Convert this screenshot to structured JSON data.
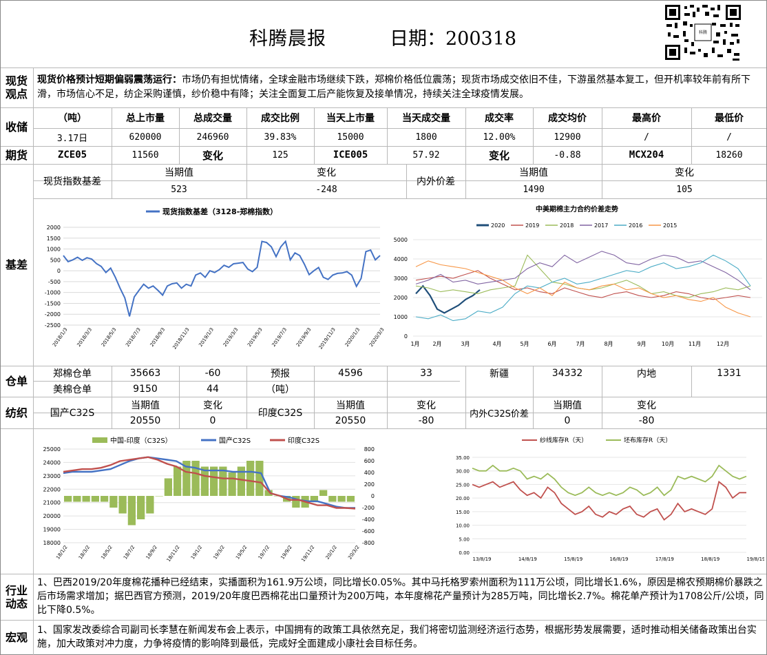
{
  "header": {
    "title": "科腾晨报",
    "date_label": "日期：200318"
  },
  "views": {
    "label": "现货观点",
    "headline": "现货价格预计短期偏弱震荡运行：",
    "body": "市场仍有担忧情绪，全球金融市场继续下跌，郑棉价格低位震荡；现货市场成交依旧不佳，下游虽然基本复工，但开机率较年前有所下滑，市场信心不足，纺企采购谨慎，纱价稳中有降；关注全面复工后产能恢复及接单情况，持续关注全球疫情发展。"
  },
  "storage": {
    "label": "收储",
    "headers": [
      "（吨）",
      "总上市量",
      "总成交量",
      "成交比例",
      "当天上市量",
      "当天成交量",
      "成交率",
      "成交均价",
      "最高价",
      "最低价"
    ],
    "values": [
      "3.17日",
      "620000",
      "246960",
      "39.83%",
      "15000",
      "1800",
      "12.00%",
      "12900",
      "/",
      "/"
    ]
  },
  "futures": {
    "label": "期货",
    "cells": [
      "ZCE05",
      "11560",
      "变化",
      "125",
      "ICE005",
      "57.92",
      "变化",
      "-0.88",
      "MCX204",
      "18260"
    ]
  },
  "basis": {
    "label": "基差",
    "spot_label": "现货指数基差",
    "cur_label": "当期值",
    "chg_label": "变化",
    "spot_cur": "523",
    "spot_chg": "-248",
    "inout_label": "内外价差",
    "inout_cur": "1490",
    "inout_chg": "105"
  },
  "chart1": {
    "type": "line",
    "title": "现货指数基差（3128-郑棉指数）",
    "color": "#4472c4",
    "yticks": [
      "2000",
      "1500",
      "1000",
      "500",
      "0",
      "-500",
      "-1000",
      "-1500",
      "-2000",
      "-2500"
    ],
    "ylim": [
      -2500,
      2000
    ],
    "xticks": [
      "2018/1/3",
      "2018/3/3",
      "2018/5/3",
      "2018/7/3",
      "2018/9/3",
      "2018/11/3",
      "2019/1/3",
      "2019/3/3",
      "2019/5/3",
      "2019/7/3",
      "2019/9/3",
      "2019/11/3",
      "2020/1/3",
      "2020/3/3"
    ],
    "values": [
      700,
      420,
      500,
      620,
      480,
      600,
      540,
      330,
      200,
      -80,
      120,
      -300,
      -800,
      -1250,
      -2100,
      -1200,
      -900,
      -620,
      -800,
      -700,
      -900,
      -1120,
      -700,
      -600,
      -560,
      -800,
      -620,
      -700,
      -200,
      -100,
      -300,
      0,
      -80,
      50,
      250,
      160,
      320,
      350,
      380,
      80,
      -40,
      160,
      1350,
      1300,
      1100,
      650,
      1100,
      1350,
      500,
      820,
      700,
      300,
      -180,
      0,
      150,
      -300,
      -400,
      -200,
      -120,
      -100,
      -40,
      -200,
      -720,
      -350,
      880,
      950,
      500,
      700
    ]
  },
  "chart2": {
    "type": "line",
    "title": "中美期棉主力合约价差走势",
    "yticks": [
      "5000",
      "4000",
      "3000",
      "2000",
      "1000",
      "0"
    ],
    "ylim": [
      0,
      5000
    ],
    "xticks": [
      "1月",
      "2月",
      "3月",
      "4月",
      "5月",
      "6月",
      "7月",
      "8月",
      "9月",
      "10月",
      "11月",
      "12月"
    ],
    "series": [
      {
        "name": "2020",
        "color": "#1f4e79",
        "values": [
          2200,
          2600,
          2100,
          1400,
          1200,
          1400,
          1600,
          1900,
          2100,
          2400
        ]
      },
      {
        "name": "2019",
        "color": "#c0504d",
        "values": [
          2900,
          3000,
          3100,
          3000,
          3200,
          3400,
          3000,
          2700,
          2400,
          2500,
          2300,
          2200,
          2500,
          2300,
          2100,
          2000,
          2200,
          2300,
          2100,
          2000,
          2100,
          2300,
          2200,
          2000,
          1900,
          2000,
          2100,
          2000
        ]
      },
      {
        "name": "2018",
        "color": "#9bbb59",
        "values": [
          2600,
          2500,
          2300,
          2400,
          2300,
          2200,
          2400,
          2500,
          2600,
          4200,
          3500,
          2800,
          2700,
          2500,
          2400,
          2500,
          2700,
          2900,
          2600,
          2200,
          2300,
          2100,
          2000,
          2200,
          2300,
          2500,
          2400,
          2600
        ]
      },
      {
        "name": "2017",
        "color": "#8064a2",
        "values": [
          2700,
          2900,
          3200,
          2800,
          2900,
          2700,
          2800,
          2900,
          3000,
          3500,
          3800,
          3600,
          4200,
          3800,
          4100,
          4400,
          4200,
          3800,
          3700,
          4000,
          4200,
          4100,
          3800,
          3900,
          3600,
          3300,
          2900,
          2400
        ]
      },
      {
        "name": "2016",
        "color": "#4bacc6",
        "values": [
          1000,
          900,
          1100,
          800,
          900,
          1300,
          1200,
          1500,
          2200,
          2600,
          2500,
          2800,
          3000,
          2700,
          2800,
          3000,
          3200,
          3400,
          3300,
          3600,
          3800,
          3500,
          3600,
          3800,
          4200,
          3900,
          3500,
          2600
        ]
      },
      {
        "name": "2015",
        "color": "#f79646",
        "values": [
          3600,
          3900,
          3700,
          3600,
          3500,
          3300,
          3100,
          2900,
          2500,
          2200,
          2500,
          2100,
          2800,
          2500,
          2400,
          2600,
          2700,
          2400,
          2500,
          2200,
          2000,
          2100,
          1900,
          1800,
          2000,
          1500,
          1200,
          1000
        ]
      }
    ]
  },
  "warehouse": {
    "label": "仓单",
    "zm_label": "郑棉仓单",
    "zm_val": "35663",
    "zm_chg": "-60",
    "yb_label": "预报",
    "yb_val": "4596",
    "yb_chg": "33",
    "xj_label": "新疆",
    "xj_val": "34332",
    "nd_label": "内地",
    "nd_val": "1331",
    "mm_label": "美棉仓单",
    "mm_val": "9150",
    "mm_chg": "44",
    "unit": "（吨）"
  },
  "spin": {
    "label": "纺织",
    "cn_label": "国产C32S",
    "cur_label": "当期值",
    "chg_label": "变化",
    "cn_cur": "20550",
    "cn_chg": "0",
    "in_label": "印度C32S",
    "in_cur": "20550",
    "in_chg": "-80",
    "diff_label": "内外C32S价差",
    "diff_cur": "0",
    "diff_chg": "-80"
  },
  "chart3": {
    "type": "bar+line",
    "legend": [
      "中国-印度（C32S）",
      "国产C32S",
      "印度C32S"
    ],
    "colors": [
      "#9bbb59",
      "#4472c4",
      "#c0504d"
    ],
    "yticks_left": [
      "25000",
      "24000",
      "23000",
      "22000",
      "21000",
      "20000",
      "19000",
      "18000"
    ],
    "ylim_left": [
      18000,
      25000
    ],
    "yticks_right": [
      "800",
      "600",
      "400",
      "200",
      "0",
      "-200",
      "-400",
      "-600",
      "-800"
    ],
    "ylim_right": [
      -800,
      800
    ],
    "xticks": [
      "18/1/2",
      "18/3/2",
      "18/5/2",
      "18/7/2",
      "18/9/2",
      "18/11/2",
      "19/1/2",
      "19/3/2",
      "19/5/2",
      "19/7/2",
      "19/9/2",
      "19/11/2",
      "20/1/2",
      "20/3/2"
    ],
    "china": [
      23200,
      23300,
      23300,
      23300,
      23400,
      23500,
      23800,
      24100,
      24300,
      24400,
      24300,
      24200,
      24100,
      23700,
      23600,
      23400,
      23400,
      23400,
      23300,
      23300,
      23300,
      23200,
      21700,
      21500,
      21400,
      21200,
      21100,
      21100,
      20900,
      20700,
      20600,
      20600
    ],
    "india": [
      23300,
      23400,
      23500,
      23500,
      23600,
      23800,
      24100,
      24200,
      24300,
      24400,
      24200,
      23900,
      23700,
      23300,
      23200,
      23000,
      22900,
      22800,
      22800,
      22700,
      22600,
      22500,
      21700,
      21500,
      21200,
      21200,
      21000,
      20800,
      20800,
      20600,
      20600,
      20550
    ],
    "diff": [
      -100,
      -100,
      -100,
      -100,
      -100,
      -200,
      -300,
      -500,
      -400,
      -300,
      0,
      300,
      500,
      600,
      600,
      500,
      500,
      500,
      400,
      500,
      600,
      600,
      100,
      0,
      -100,
      -200,
      -200,
      -100,
      100,
      -100,
      -100,
      -100
    ]
  },
  "chart4": {
    "type": "line",
    "legend": [
      "纱线库存R（天）",
      "坯布库存R（天）"
    ],
    "colors": [
      "#c0504d",
      "#9bbb59"
    ],
    "yticks": [
      "35.00",
      "30.00",
      "25.00",
      "20.00",
      "15.00",
      "10.00",
      "5.00",
      "0.00"
    ],
    "ylim": [
      0,
      35
    ],
    "xticks": [
      "13/8/19",
      "14/8/19",
      "15/8/19",
      "16/8/19",
      "17/8/19",
      "18/8/19",
      "19/8/19"
    ],
    "yarn": [
      25,
      24,
      25,
      26,
      24,
      25,
      26,
      23,
      21,
      22,
      20,
      24,
      22,
      18,
      16,
      14,
      15,
      17,
      14,
      13,
      15,
      14,
      16,
      17,
      14,
      13,
      15,
      16,
      12,
      14,
      18,
      15,
      16,
      15,
      14,
      16,
      26,
      24,
      20,
      22,
      22
    ],
    "cloth": [
      31,
      30,
      30,
      32,
      30,
      30,
      31,
      30,
      27,
      28,
      27,
      29,
      27,
      24,
      22,
      21,
      22,
      24,
      22,
      21,
      22,
      21,
      22,
      24,
      23,
      21,
      22,
      24,
      21,
      23,
      28,
      27,
      28,
      27,
      26,
      28,
      32,
      30,
      28,
      27,
      28
    ]
  },
  "industry": {
    "label": "行业动态",
    "body": "1、巴西2019/20年度棉花播种已经结束，实播面积为161.9万公顷，同比增长0.05%。其中马托格罗索州面积为111万公顷，同比增长1.6%，原因是棉农预期棉价暴跌之后市场需求增加；据巴西官方预测，2019/20年度巴西棉花出口量预计为200万吨，本年度棉花产量预计为285万吨，同比增长2.7%。棉花单产预计为1708公斤/公顷，同比下降0.5%。"
  },
  "macro": {
    "label": "宏观",
    "body": "1、国家发改委综合司副司长李慧在新闻发布会上表示，中国拥有的政策工具依然充足，我们将密切监测经济运行态势，根据形势发展需要，适时推动相关储备政策出台实施，加大政策对冲力度，力争将疫情的影响降到最低，完成好全面建成小康社会目标任务。"
  }
}
